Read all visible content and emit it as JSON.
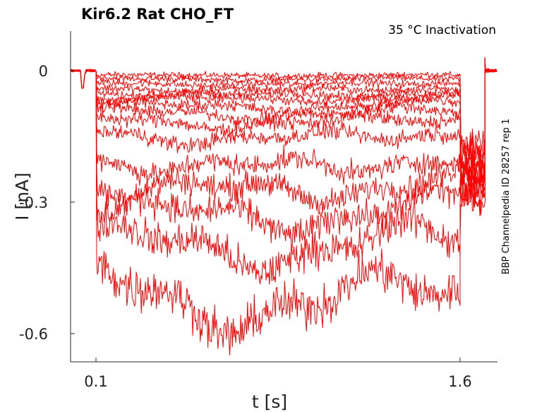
{
  "chart_data": {
    "type": "line",
    "title": "Kir6.2  Rat  CHO_FT",
    "condition": "35 °C  Inactivation",
    "xlabel": "t [s]",
    "ylabel": "I [nA]",
    "side_label": "BBP Channelpedia ID 28257 rep 1",
    "x_ticks": [
      {
        "value": 0.1,
        "label": "0.1"
      },
      {
        "value": 1.6,
        "label": "1.6"
      }
    ],
    "y_ticks": [
      {
        "value": 0,
        "label": "0"
      },
      {
        "value": -0.3,
        "label": "-0.3"
      },
      {
        "value": -0.6,
        "label": "-0.6"
      }
    ],
    "xlim": [
      0.0,
      1.75
    ],
    "ylim": [
      -0.66,
      0.09
    ],
    "trace_color": "#ff0000",
    "pulse_window": [
      0.1,
      1.6
    ],
    "series_steady_current_nA": [
      -0.01,
      -0.018,
      -0.028,
      -0.04,
      -0.05,
      -0.06,
      -0.075,
      -0.09,
      -0.11,
      -0.14,
      -0.2,
      -0.25,
      -0.31,
      -0.38,
      -0.48
    ],
    "series_peak_current_nA": [
      -0.012,
      -0.022,
      -0.034,
      -0.048,
      -0.06,
      -0.072,
      -0.09,
      -0.11,
      -0.13,
      -0.17,
      -0.24,
      -0.3,
      -0.36,
      -0.44,
      -0.6
    ]
  }
}
